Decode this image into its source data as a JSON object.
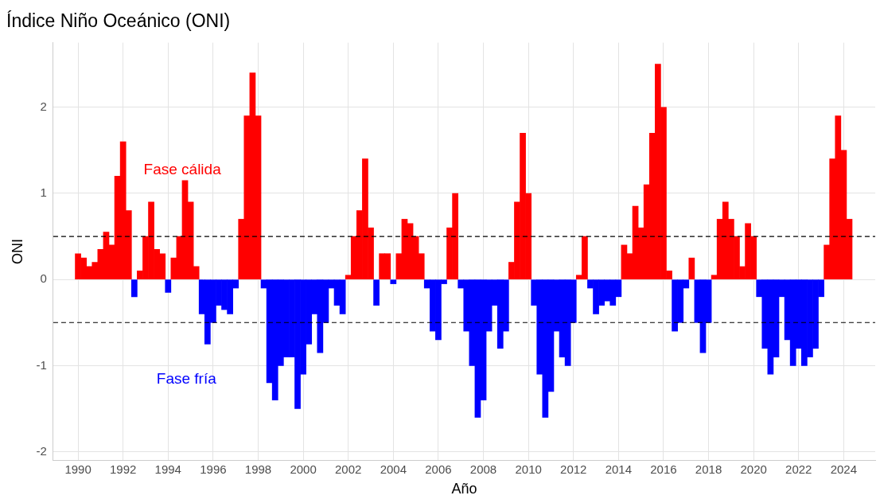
{
  "chart_data": {
    "type": "bar",
    "title": "Índice Niño Oceánico (ONI)",
    "xlabel": "Año",
    "ylabel": "ONI",
    "x": [
      1990,
      1990.25,
      1990.5,
      1990.75,
      1991,
      1991.25,
      1991.5,
      1991.75,
      1992,
      1992.25,
      1992.5,
      1992.75,
      1993,
      1993.25,
      1993.5,
      1993.75,
      1994,
      1994.25,
      1994.5,
      1994.75,
      1995,
      1995.25,
      1995.5,
      1995.75,
      1996,
      1996.25,
      1996.5,
      1996.75,
      1997,
      1997.25,
      1997.5,
      1997.75,
      1998,
      1998.25,
      1998.5,
      1998.75,
      1999,
      1999.25,
      1999.5,
      1999.75,
      2000,
      2000.25,
      2000.5,
      2000.75,
      2001,
      2001.25,
      2001.5,
      2001.75,
      2002,
      2002.25,
      2002.5,
      2002.75,
      2003,
      2003.25,
      2003.5,
      2003.75,
      2004,
      2004.25,
      2004.5,
      2004.75,
      2005,
      2005.25,
      2005.5,
      2005.75,
      2006,
      2006.25,
      2006.5,
      2006.75,
      2007,
      2007.25,
      2007.5,
      2007.75,
      2008,
      2008.25,
      2008.5,
      2008.75,
      2009,
      2009.25,
      2009.5,
      2009.75,
      2010,
      2010.25,
      2010.5,
      2010.75,
      2011,
      2011.25,
      2011.5,
      2011.75,
      2012,
      2012.25,
      2012.5,
      2012.75,
      2013,
      2013.25,
      2013.5,
      2013.75,
      2014,
      2014.25,
      2014.5,
      2014.75,
      2015,
      2015.25,
      2015.5,
      2015.75,
      2016,
      2016.25,
      2016.5,
      2016.75,
      2017,
      2017.25,
      2017.5,
      2017.75,
      2018,
      2018.25,
      2018.5,
      2018.75,
      2019,
      2019.25,
      2019.5,
      2019.75,
      2020,
      2020.25,
      2020.5,
      2020.75,
      2021,
      2021.25,
      2021.5,
      2021.75,
      2022,
      2022.25,
      2022.5,
      2022.75,
      2023,
      2023.25,
      2023.5,
      2023.75,
      2024,
      2024.25
    ],
    "values": [
      0.3,
      0.25,
      0.15,
      0.2,
      0.35,
      0.55,
      0.4,
      1.2,
      1.6,
      0.8,
      -0.2,
      0.1,
      0.5,
      0.9,
      0.35,
      0.3,
      -0.15,
      0.25,
      0.5,
      1.15,
      0.9,
      0.15,
      -0.4,
      -0.75,
      -0.5,
      -0.3,
      -0.35,
      -0.4,
      -0.1,
      0.7,
      1.9,
      2.4,
      1.9,
      -0.1,
      -1.2,
      -1.4,
      -1.0,
      -0.9,
      -0.9,
      -1.5,
      -1.1,
      -0.75,
      -0.4,
      -0.85,
      -0.5,
      -0.1,
      -0.3,
      -0.4,
      0.05,
      0.5,
      0.8,
      1.4,
      0.6,
      -0.3,
      0.3,
      0.3,
      -0.05,
      0.3,
      0.7,
      0.65,
      0.5,
      0.3,
      -0.1,
      -0.6,
      -0.7,
      -0.05,
      0.6,
      1.0,
      -0.1,
      -0.6,
      -1.0,
      -1.6,
      -1.4,
      -0.6,
      -0.3,
      -0.8,
      -0.6,
      0.2,
      0.9,
      1.7,
      1.0,
      -0.3,
      -1.1,
      -1.6,
      -1.3,
      -0.6,
      -0.9,
      -1.0,
      -0.5,
      0.05,
      0.5,
      -0.1,
      -0.4,
      -0.3,
      -0.25,
      -0.3,
      -0.2,
      0.4,
      0.3,
      0.85,
      0.6,
      1.1,
      1.7,
      2.5,
      2.0,
      0.1,
      -0.6,
      -0.5,
      -0.1,
      0.25,
      -0.5,
      -0.85,
      -0.5,
      0.05,
      0.7,
      0.9,
      0.7,
      0.5,
      0.15,
      0.65,
      0.5,
      -0.2,
      -0.8,
      -1.1,
      -0.9,
      -0.2,
      -0.7,
      -1.0,
      -0.8,
      -1.0,
      -0.9,
      -0.8,
      -0.2,
      0.4,
      1.4,
      1.9,
      1.5,
      0.7
    ],
    "colors": [
      "#ff0000",
      "#ff0000",
      "#ff0000",
      "#ff0000",
      "#ff0000",
      "#ff0000",
      "#ff0000",
      "#ff0000",
      "#ff0000",
      "#ff0000",
      "#0000ff",
      "#ff0000",
      "#ff0000",
      "#ff0000",
      "#ff0000",
      "#ff0000",
      "#0000ff",
      "#ff0000",
      "#ff0000",
      "#ff0000",
      "#ff0000",
      "#ff0000",
      "#0000ff",
      "#0000ff",
      "#0000ff",
      "#0000ff",
      "#0000ff",
      "#0000ff",
      "#0000ff",
      "#ff0000",
      "#ff0000",
      "#ff0000",
      "#ff0000",
      "#0000ff",
      "#0000ff",
      "#0000ff",
      "#0000ff",
      "#0000ff",
      "#0000ff",
      "#0000ff",
      "#0000ff",
      "#0000ff",
      "#0000ff",
      "#0000ff",
      "#0000ff",
      "#0000ff",
      "#0000ff",
      "#0000ff",
      "#ff0000",
      "#ff0000",
      "#ff0000",
      "#ff0000",
      "#ff0000",
      "#0000ff",
      "#ff0000",
      "#ff0000",
      "#0000ff",
      "#ff0000",
      "#ff0000",
      "#ff0000",
      "#ff0000",
      "#ff0000",
      "#0000ff",
      "#0000ff",
      "#0000ff",
      "#0000ff",
      "#ff0000",
      "#ff0000",
      "#0000ff",
      "#0000ff",
      "#0000ff",
      "#0000ff",
      "#0000ff",
      "#0000ff",
      "#0000ff",
      "#0000ff",
      "#0000ff",
      "#ff0000",
      "#ff0000",
      "#ff0000",
      "#ff0000",
      "#0000ff",
      "#0000ff",
      "#0000ff",
      "#0000ff",
      "#0000ff",
      "#0000ff",
      "#0000ff",
      "#0000ff",
      "#ff0000",
      "#ff0000",
      "#0000ff",
      "#0000ff",
      "#0000ff",
      "#0000ff",
      "#0000ff",
      "#0000ff",
      "#ff0000",
      "#ff0000",
      "#ff0000",
      "#ff0000",
      "#ff0000",
      "#ff0000",
      "#ff0000",
      "#ff0000",
      "#ff0000",
      "#0000ff",
      "#0000ff",
      "#0000ff",
      "#ff0000",
      "#0000ff",
      "#0000ff",
      "#0000ff",
      "#ff0000",
      "#ff0000",
      "#ff0000",
      "#ff0000",
      "#ff0000",
      "#ff0000",
      "#ff0000",
      "#ff0000",
      "#0000ff",
      "#0000ff",
      "#0000ff",
      "#0000ff",
      "#0000ff",
      "#0000ff",
      "#0000ff",
      "#0000ff",
      "#0000ff",
      "#0000ff",
      "#0000ff",
      "#0000ff",
      "#ff0000",
      "#ff0000",
      "#ff0000",
      "#ff0000",
      "#ff0000"
    ],
    "xlim": [
      1988.9,
      2025.4
    ],
    "ylim": [
      -2.1,
      2.75
    ],
    "xticks": [
      1990,
      1992,
      1994,
      1996,
      1998,
      2000,
      2002,
      2004,
      2006,
      2008,
      2010,
      2012,
      2014,
      2016,
      2018,
      2020,
      2022,
      2024
    ],
    "yticks": [
      -2,
      -1,
      0,
      1,
      2
    ],
    "grid": true,
    "ref_lines": [
      {
        "axis": "y",
        "value": 0.5,
        "color": "#000000",
        "line_style": "dashed"
      },
      {
        "axis": "y",
        "value": -0.5,
        "color": "#000000",
        "line_style": "dashed"
      }
    ],
    "annotations": [
      "Fase cálida",
      "Fase fría"
    ]
  }
}
